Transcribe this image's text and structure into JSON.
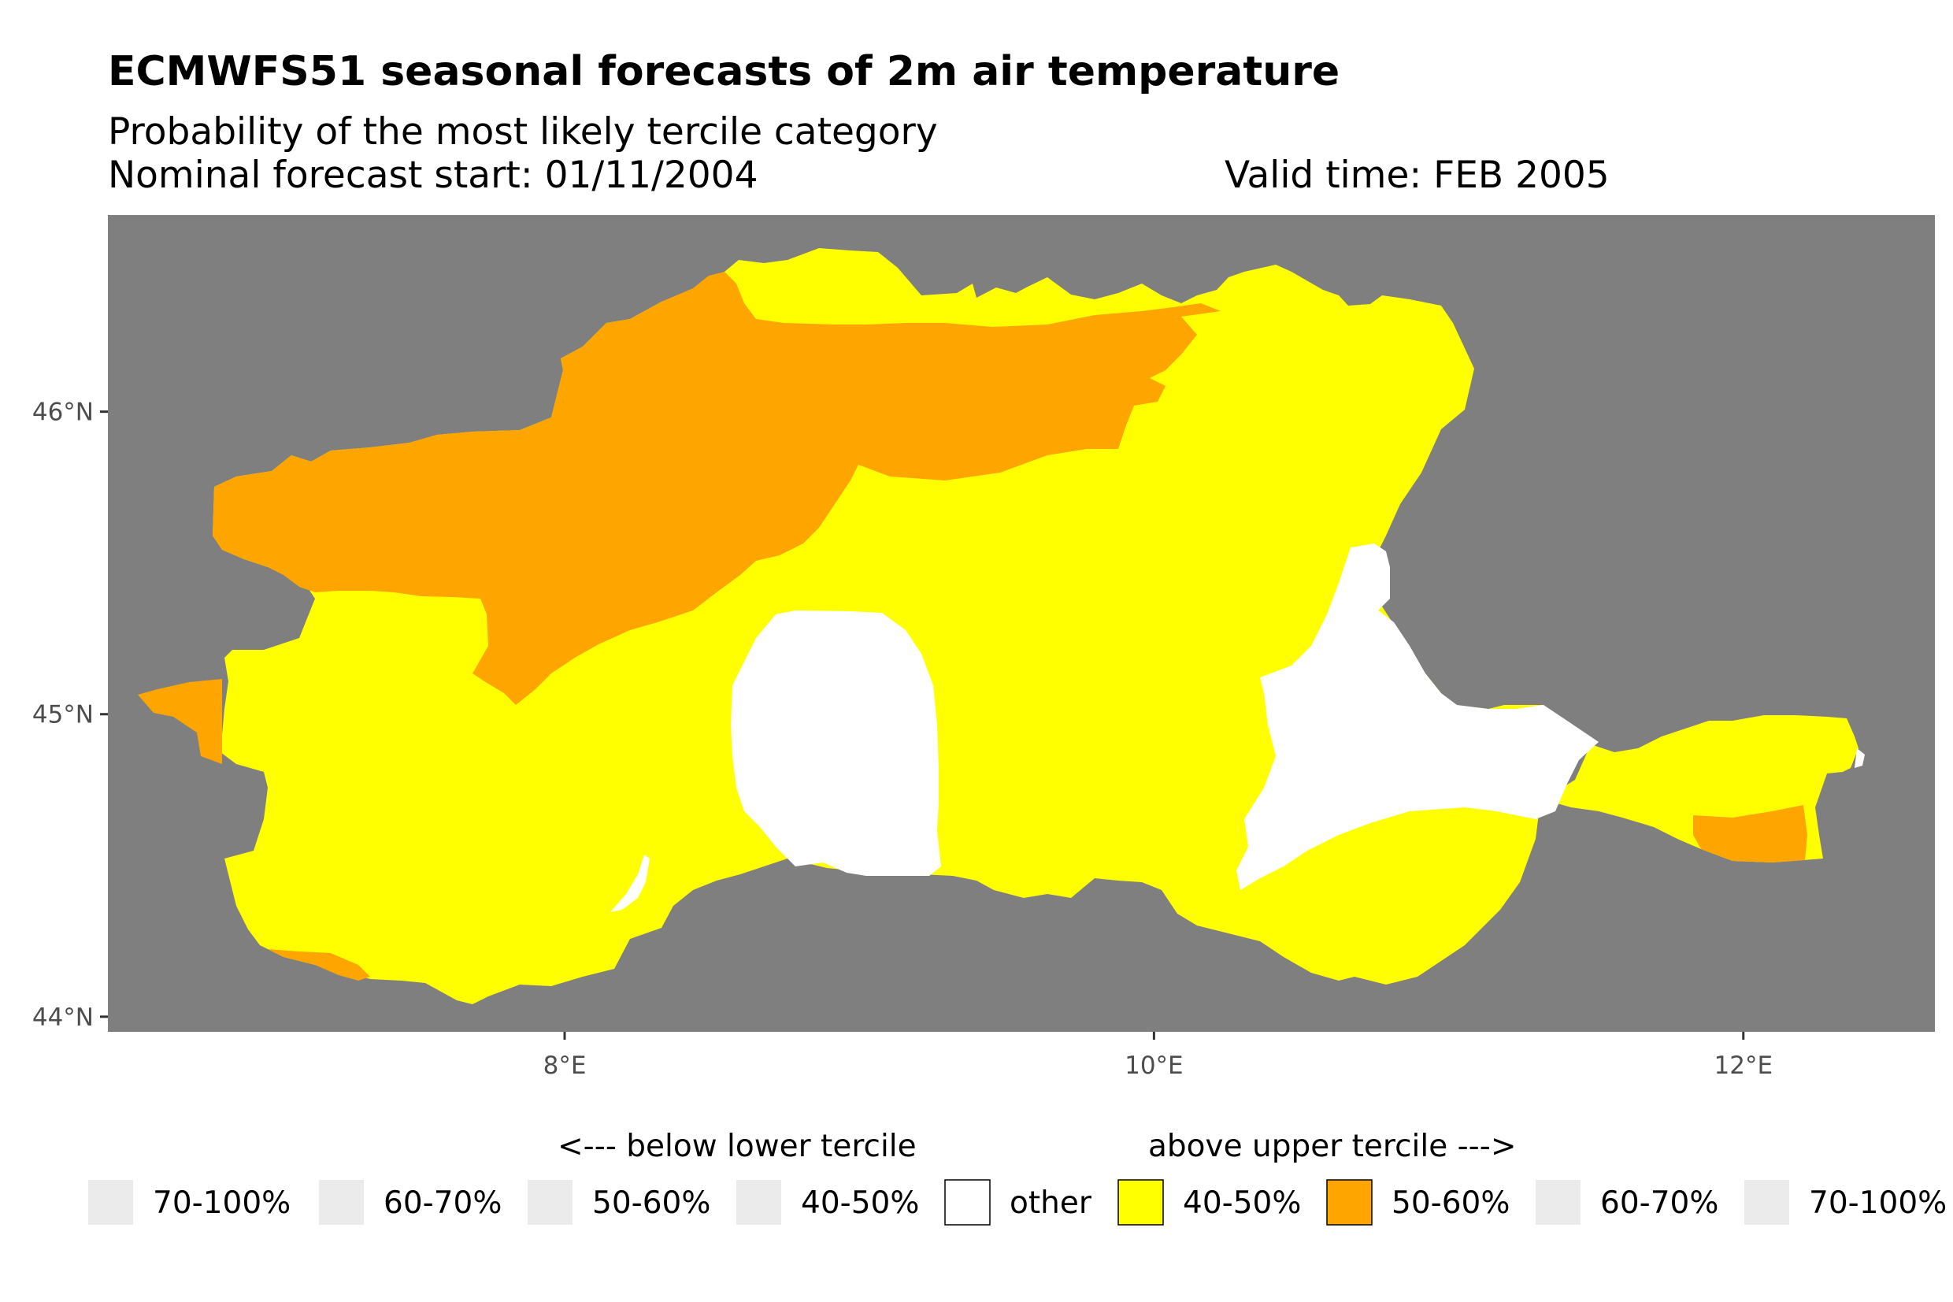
{
  "title": "ECMWFS51 seasonal forecasts of 2m air temperature",
  "subtitle": "Probability of the most likely tercile category",
  "forecast_start": "Nominal forecast start: 01/11/2004",
  "valid_time": "Valid time: FEB 2005",
  "map": {
    "background_color": "#7f7f7f",
    "x_range_deg_e": [
      6.45,
      12.65
    ],
    "y_range_deg_n": [
      43.95,
      46.65
    ],
    "x_ticks": [
      {
        "value": 8,
        "label": "8°E"
      },
      {
        "value": 10,
        "label": "10°E"
      },
      {
        "value": 12,
        "label": "12°E"
      }
    ],
    "y_ticks": [
      {
        "value": 46,
        "label": "46°N"
      },
      {
        "value": 45,
        "label": "45°N"
      },
      {
        "value": 44,
        "label": "44°N"
      }
    ],
    "regions": [
      {
        "category": "above-40-50",
        "color": "#ffff00",
        "description": "main Po basin area"
      },
      {
        "category": "above-50-60",
        "color": "#ffa500",
        "description": "northern alpine band"
      },
      {
        "category": "other",
        "color": "#ffffff",
        "description": "central and eastern patches"
      }
    ]
  },
  "legend": {
    "below_header": "<--- below lower tercile",
    "above_header": "above upper tercile --->",
    "items": [
      {
        "label": "70-100%",
        "color": "#ebebeb",
        "bordered": false
      },
      {
        "label": "60-70%",
        "color": "#ebebeb",
        "bordered": false
      },
      {
        "label": "50-60%",
        "color": "#ebebeb",
        "bordered": false
      },
      {
        "label": "40-50%",
        "color": "#ebebeb",
        "bordered": false
      },
      {
        "label": "other",
        "color": "#ffffff",
        "bordered": true
      },
      {
        "label": "40-50%",
        "color": "#ffff00",
        "bordered": true
      },
      {
        "label": "50-60%",
        "color": "#ffa500",
        "bordered": true
      },
      {
        "label": "60-70%",
        "color": "#ebebeb",
        "bordered": false
      },
      {
        "label": "70-100%",
        "color": "#ebebeb",
        "bordered": false
      }
    ]
  }
}
